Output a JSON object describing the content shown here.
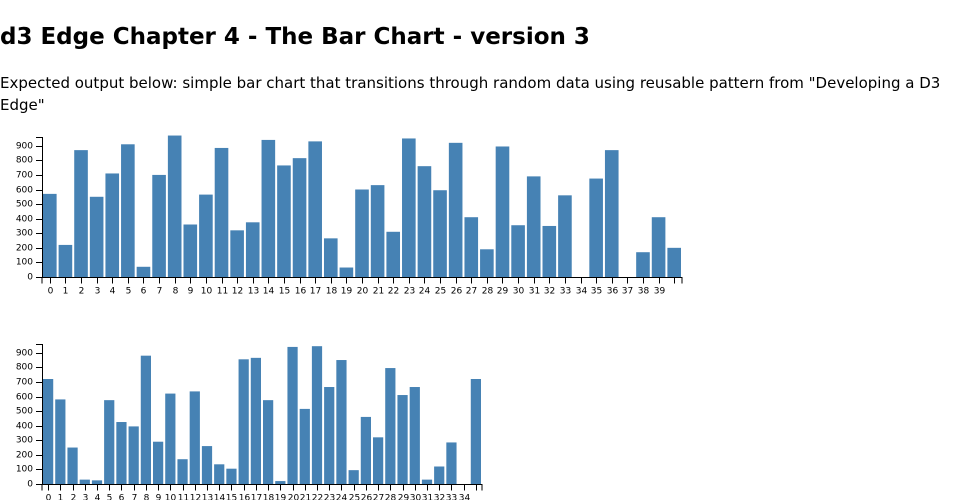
{
  "page": {
    "title": "d3 Edge Chapter 4 - The Bar Chart - version 3",
    "description": "Expected output below: simple bar chart that transitions through random data using reusable pattern from \"Developing a D3 Edge\""
  },
  "colors": {
    "bar": "#4682b4",
    "axis": "#000000",
    "background": "#ffffff"
  },
  "chart_data": [
    {
      "type": "bar",
      "title": "",
      "xlabel": "",
      "ylabel": "",
      "ylim": [
        0,
        960
      ],
      "yticks": [
        0,
        100,
        200,
        300,
        400,
        500,
        600,
        700,
        800,
        900
      ],
      "categories": [
        "0",
        "1",
        "2",
        "3",
        "4",
        "5",
        "6",
        "7",
        "8",
        "9",
        "10",
        "11",
        "12",
        "13",
        "14",
        "15",
        "16",
        "17",
        "18",
        "19",
        "20",
        "21",
        "22",
        "23",
        "24",
        "25",
        "26",
        "27",
        "28",
        "29",
        "30",
        "31",
        "32",
        "33",
        "34",
        "35",
        "36",
        "37",
        "38",
        "39",
        "40"
      ],
      "tick_labels": [
        "0",
        "1",
        "2",
        "3",
        "4",
        "5",
        "6",
        "7",
        "8",
        "9",
        "10",
        "11",
        "12",
        "13",
        "14",
        "15",
        "16",
        "17",
        "18",
        "19",
        "20",
        "21",
        "22",
        "23",
        "24",
        "25",
        "26",
        "27",
        "28",
        "29",
        "30",
        "31",
        "32",
        "33",
        "34",
        "35",
        "36",
        "37",
        "38",
        "39",
        ""
      ],
      "values": [
        570,
        220,
        870,
        550,
        710,
        910,
        70,
        700,
        970,
        360,
        565,
        885,
        320,
        375,
        940,
        765,
        815,
        930,
        265,
        65,
        600,
        630,
        310,
        950,
        760,
        595,
        920,
        410,
        190,
        895,
        355,
        690,
        350,
        560,
        0,
        675,
        870,
        0,
        170,
        410,
        200
      ],
      "grid": false,
      "legend": "none"
    },
    {
      "type": "bar",
      "title": "",
      "xlabel": "",
      "ylabel": "",
      "ylim": [
        0,
        960
      ],
      "yticks": [
        0,
        100,
        200,
        300,
        400,
        500,
        600,
        700,
        800,
        900
      ],
      "categories": [
        "0",
        "1",
        "2",
        "3",
        "4",
        "5",
        "6",
        "7",
        "8",
        "9",
        "10",
        "11",
        "12",
        "13",
        "14",
        "15",
        "16",
        "17",
        "18",
        "19",
        "20",
        "21",
        "22",
        "23",
        "24",
        "25",
        "26",
        "27",
        "28",
        "29",
        "30",
        "31",
        "32",
        "33",
        "34",
        "35"
      ],
      "tick_labels": [
        "0",
        "1",
        "2",
        "3",
        "4",
        "5",
        "6",
        "7",
        "8",
        "9",
        "10",
        "11",
        "12",
        "13",
        "14",
        "15",
        "16",
        "17",
        "18",
        "19",
        "20",
        "21",
        "22",
        "23",
        "24",
        "25",
        "26",
        "27",
        "28",
        "29",
        "30",
        "31",
        "32",
        "33",
        "34",
        ""
      ],
      "values": [
        720,
        580,
        250,
        30,
        25,
        575,
        425,
        395,
        880,
        290,
        620,
        170,
        635,
        260,
        135,
        105,
        855,
        865,
        575,
        20,
        940,
        515,
        945,
        665,
        850,
        95,
        460,
        320,
        795,
        610,
        665,
        30,
        120,
        285,
        0,
        720
      ],
      "grid": false,
      "legend": "none"
    }
  ]
}
